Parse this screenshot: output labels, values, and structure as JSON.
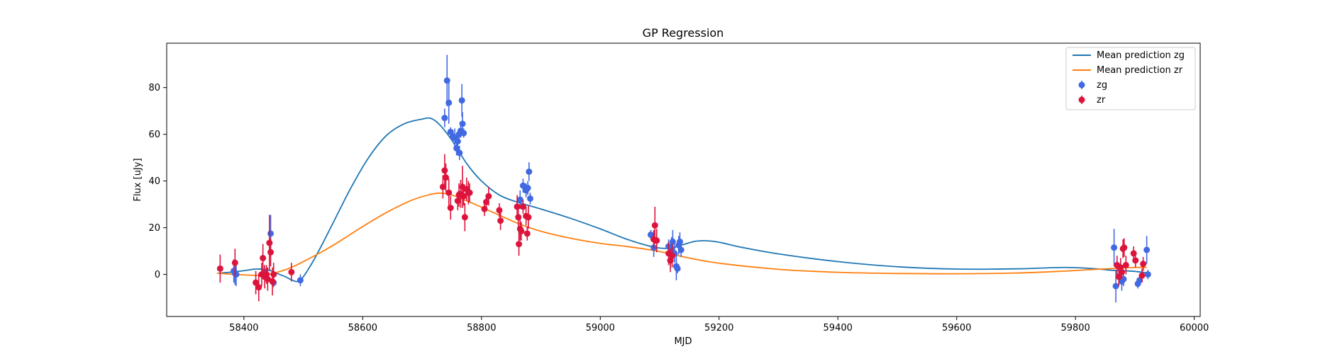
{
  "chart_data": {
    "type": "scatter",
    "title": "GP Regression",
    "xlabel": "MJD",
    "ylabel": "Flux [uJy]",
    "xlim": [
      58270,
      60010
    ],
    "ylim": [
      -18,
      99
    ],
    "xticks": [
      58400,
      58600,
      58800,
      59000,
      59200,
      59400,
      59600,
      59800,
      60000
    ],
    "yticks": [
      0,
      20,
      40,
      60,
      80
    ],
    "grid": false,
    "legend_position": "top-right",
    "lines": [
      {
        "name": "Mean prediction zg",
        "color": "#1f77b4",
        "x": [
          58355,
          58380,
          58400,
          58420,
          58440,
          58455,
          58470,
          58480,
          58490,
          58500,
          58515,
          58530,
          58550,
          58580,
          58610,
          58640,
          58670,
          58700,
          58715,
          58730,
          58750,
          58775,
          58800,
          58830,
          58860,
          58900,
          58950,
          59000,
          59040,
          59080,
          59100,
          59120,
          59140,
          59160,
          59180,
          59200,
          59240,
          59300,
          59400,
          59500,
          59600,
          59700,
          59780,
          59830,
          59860,
          59880,
          59900,
          59920
        ],
        "y": [
          0.5,
          1.0,
          1.6,
          2.3,
          2.0,
          0.5,
          -1.0,
          -2.3,
          -3.0,
          -1.0,
          5.0,
          12.0,
          22.0,
          37.0,
          50.0,
          59.5,
          64.5,
          66.5,
          66.8,
          64.0,
          57.5,
          47.5,
          40.0,
          34.0,
          31.0,
          28.0,
          24.0,
          19.5,
          15.5,
          12.3,
          11.3,
          11.3,
          12.8,
          14.2,
          14.4,
          13.8,
          11.5,
          8.8,
          5.5,
          3.3,
          2.3,
          2.4,
          3.0,
          2.5,
          1.8,
          1.6,
          1.3,
          0.7
        ]
      },
      {
        "name": "Mean prediction zr",
        "color": "#ff7f0e",
        "x": [
          58355,
          58380,
          58400,
          58420,
          58440,
          58460,
          58480,
          58500,
          58530,
          58560,
          58600,
          58640,
          58680,
          58710,
          58730,
          58750,
          58780,
          58820,
          58860,
          58900,
          58950,
          59000,
          59050,
          59100,
          59150,
          59200,
          59300,
          59400,
          59500,
          59600,
          59700,
          59780,
          59820,
          59860,
          59880,
          59900,
          59920
        ],
        "y": [
          0.5,
          0.1,
          -0.2,
          -0.4,
          0.0,
          1.2,
          3.0,
          5.5,
          9.5,
          14.0,
          20.5,
          26.5,
          31.5,
          34.0,
          34.8,
          34.0,
          31.0,
          26.5,
          22.0,
          18.5,
          15.5,
          13.3,
          11.8,
          9.8,
          7.0,
          4.8,
          2.2,
          0.9,
          0.4,
          0.3,
          0.6,
          1.4,
          2.0,
          2.5,
          2.8,
          3.0,
          3.0
        ]
      }
    ],
    "series": [
      {
        "name": "zg",
        "color": "#4169e1",
        "x": [
          58383,
          58385,
          58387,
          58435,
          58445,
          58450,
          58495,
          58738,
          58742,
          58745,
          58748,
          58752,
          58755,
          58758,
          58760,
          58762,
          58763,
          58765,
          58767,
          58768,
          58770,
          58865,
          58870,
          58875,
          58878,
          58880,
          58882,
          59085,
          59090,
          59115,
          59118,
          59120,
          59122,
          59125,
          59128,
          59130,
          59132,
          59134,
          59136,
          59865,
          59868,
          59878,
          59881,
          59905,
          59908,
          59920,
          59922
        ],
        "y": [
          1.5,
          0.5,
          0.0,
          1.0,
          17.5,
          -3.5,
          -2.5,
          67.0,
          83.0,
          73.5,
          61.0,
          59.0,
          58.5,
          54.0,
          57.0,
          60.0,
          52.0,
          61.5,
          74.5,
          64.5,
          60.5,
          32.0,
          38.0,
          36.0,
          37.0,
          44.0,
          32.5,
          17.0,
          11.5,
          12.0,
          6.0,
          11.0,
          14.0,
          9.0,
          3.5,
          2.5,
          12.5,
          14.0,
          10.5,
          11.5,
          -5.0,
          -3.0,
          -2.0,
          -4.0,
          -2.5,
          10.5,
          0.0
        ],
        "err": [
          5,
          5,
          5,
          3,
          8,
          2,
          2.5,
          4,
          11,
          9,
          2,
          2,
          4,
          3,
          4,
          2,
          3,
          3,
          7,
          5,
          2,
          4,
          3,
          3,
          3,
          4,
          2.5,
          2,
          4,
          3,
          3,
          5,
          5,
          4,
          6,
          2,
          4,
          4,
          3,
          8,
          7,
          4,
          3,
          2,
          2,
          6,
          2
        ]
      },
      {
        "name": "zr",
        "color": "#dc143c",
        "x": [
          58360,
          58385,
          58420,
          58425,
          58430,
          58432,
          58435,
          58438,
          58440,
          58443,
          58445,
          58448,
          58450,
          58480,
          58735,
          58738,
          58740,
          58745,
          58748,
          58760,
          58762,
          58765,
          58768,
          58770,
          58772,
          58775,
          58778,
          58780,
          58805,
          58808,
          58812,
          58830,
          58832,
          58860,
          58862,
          58863,
          58865,
          58867,
          58870,
          58875,
          58877,
          58879,
          59090,
          59092,
          59095,
          59115,
          59118,
          59121,
          59870,
          59873,
          59876,
          59878,
          59880,
          59882,
          59885,
          59898,
          59901,
          59912,
          59914
        ],
        "y": [
          2.5,
          5.0,
          -3.5,
          -5.5,
          0.0,
          7.0,
          -1.0,
          0.0,
          -2.0,
          13.5,
          9.5,
          -3.0,
          0.0,
          1.0,
          37.5,
          44.5,
          41.5,
          35.0,
          28.5,
          31.5,
          34.0,
          34.5,
          37.5,
          33.5,
          24.5,
          36.5,
          35.0,
          35.0,
          28.0,
          31.0,
          33.5,
          27.5,
          23.0,
          29.0,
          24.5,
          13.0,
          19.5,
          18.5,
          29.0,
          25.0,
          17.5,
          24.5,
          15.0,
          21.0,
          14.5,
          9.0,
          6.0,
          8.0,
          4.0,
          -1.0,
          3.0,
          1.0,
          11.0,
          11.5,
          4.0,
          9.0,
          6.0,
          -0.5,
          4.5
        ],
        "err": [
          6,
          6,
          5,
          6,
          5,
          6,
          5,
          4,
          5,
          12,
          6,
          6,
          5,
          4,
          5,
          7,
          6,
          6,
          5,
          4,
          5,
          6,
          9,
          4,
          6,
          5,
          5,
          4,
          3,
          3,
          4,
          3,
          4,
          5,
          4,
          5,
          5,
          4,
          3,
          4,
          3,
          5,
          4,
          8,
          5,
          5,
          5,
          5,
          4,
          4,
          4,
          3,
          4,
          4,
          4,
          3,
          3,
          3,
          3
        ]
      }
    ]
  }
}
